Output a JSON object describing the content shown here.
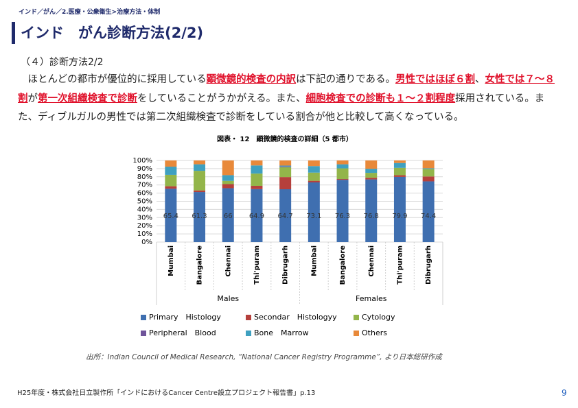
{
  "header": {
    "breadcrumb": "インド／がん／2.医療・公衆衛生>治療方法・体制",
    "title": "インド　がん診断方法(2/2)"
  },
  "section": "（４）診断方法2/2",
  "paragraph": [
    {
      "text": "ほとんどの都市が優位的に採用している",
      "highlight": false
    },
    {
      "text": "顕微鏡的検査の内訳",
      "highlight": true
    },
    {
      "text": "は下記の通りである。",
      "highlight": false
    },
    {
      "text": "男性ではほぼ６割",
      "highlight": true
    },
    {
      "text": "、",
      "highlight": false
    },
    {
      "text": "女性では７～８割",
      "highlight": true
    },
    {
      "text": "が",
      "highlight": false
    },
    {
      "text": "第一次組織検査で診断",
      "highlight": true
    },
    {
      "text": "をしていることがうかがえる。また、",
      "highlight": false
    },
    {
      "text": "細胞検査での診断も１～２割程度",
      "highlight": true
    },
    {
      "text": "採用されている。また、ディブルガルの男性では第二次組織検査で診断をしている割合が他と比較して高くなっている。",
      "highlight": false
    }
  ],
  "chart_data": {
    "type": "stacked_bar",
    "title": "図表・ 12　顕微鏡的検査の詳細（5 都市）",
    "categories": [
      "Mumbai",
      "Bangalore",
      "Chennai",
      "Thi'puram",
      "Dibrugarh",
      "Mumbai",
      "Bangalore",
      "Chennai",
      "Thi'puram",
      "Dibrugarh"
    ],
    "groups": [
      "Males",
      "Females"
    ],
    "series": [
      {
        "name": "Primary　Histology",
        "color": "#3f6fb0",
        "values": [
          65.4,
          61.3,
          66,
          64.9,
          64.7,
          73.1,
          76.3,
          76.8,
          79.9,
          74.4
        ]
      },
      {
        "name": "Secondar　Histologyy",
        "color": "#b5403c",
        "values": [
          3,
          2,
          5,
          4,
          15,
          2,
          1,
          2,
          2,
          6
        ]
      },
      {
        "name": "Cytology",
        "color": "#93b54a",
        "values": [
          14,
          24,
          4,
          15,
          12,
          10,
          13,
          6,
          9,
          9
        ]
      },
      {
        "name": "Peripheral　Blood",
        "color": "#6f549a",
        "values": [
          0,
          0,
          0,
          0,
          1,
          0,
          0,
          0,
          0,
          0
        ]
      },
      {
        "name": "Bone　Marrow",
        "color": "#3fa0c0",
        "values": [
          10,
          8,
          7,
          10,
          1,
          8,
          5,
          5,
          6,
          1
        ]
      },
      {
        "name": "Others",
        "color": "#e8893a",
        "values": [
          7.6,
          4.7,
          18,
          6.1,
          6.3,
          6.9,
          4.7,
          10.2,
          3.1,
          9.6
        ]
      }
    ],
    "ylim": [
      0,
      100
    ],
    "yticks": [
      {
        "value": 0,
        "label": "0%"
      },
      {
        "value": 10,
        "label": "10%"
      },
      {
        "value": 20,
        "label": "20%"
      },
      {
        "value": 30,
        "label": "30%"
      },
      {
        "value": 40,
        "label": "40%"
      },
      {
        "value": 50,
        "label": "50%"
      },
      {
        "value": 60,
        "label": "60%"
      },
      {
        "value": 70,
        "label": "70%"
      },
      {
        "value": 80,
        "label": "80%"
      },
      {
        "value": 90,
        "label": "90%"
      },
      {
        "value": 100,
        "label": "100%"
      }
    ],
    "grid": true,
    "source": "出所：Indian Council of Medical Research, “National Cancer Registry Programme”, より日本総研作成"
  },
  "footer": {
    "reference": "H25年度・株式会社日立製作所「インドにおけるCancer Centre設立プロジェクト報告書」p.13",
    "page": "9"
  }
}
